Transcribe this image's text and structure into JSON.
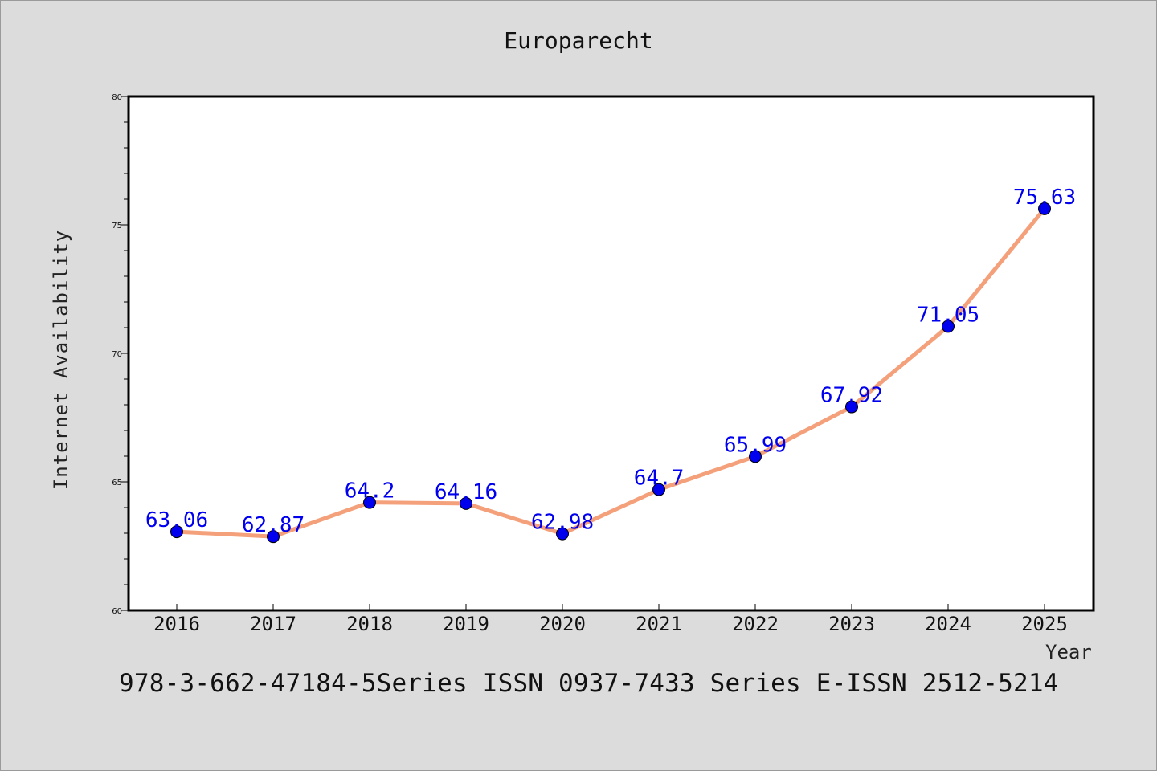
{
  "chart_data": {
    "type": "line",
    "title": "Europarecht",
    "xlabel": "Year",
    "ylabel": "Internet Availability",
    "x": [
      "2016",
      "2017",
      "2018",
      "2019",
      "2020",
      "2021",
      "2022",
      "2023",
      "2024",
      "2025"
    ],
    "series": [
      {
        "values": [
          63.06,
          62.87,
          64.2,
          64.16,
          62.98,
          64.7,
          65.99,
          67.92,
          71.05,
          75.63
        ],
        "labels": [
          "63.06",
          "62.87",
          "64.2",
          "64.16",
          "62.98",
          "64.7",
          "65.99",
          "67.92",
          "71.05",
          "75.63"
        ],
        "line_color": "#f4a07a",
        "marker_color": "#0000ee"
      }
    ],
    "ylim": [
      60,
      80
    ],
    "yticks": [
      "60",
      "65",
      "70",
      "75",
      "80"
    ],
    "grid": false,
    "legend": "none"
  },
  "footer": {
    "text": "978-3-662-47184-5Series ISSN 0937-7433 Series E-ISSN 2512-5214"
  }
}
